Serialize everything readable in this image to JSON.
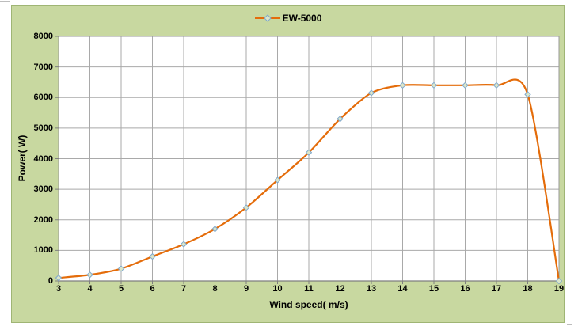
{
  "page": {
    "background": "#ffffff"
  },
  "chart": {
    "background": "#c8d8a0",
    "border_color": "#9fb574",
    "legend": {
      "label": "EW-5000"
    },
    "x_axis": {
      "title": "Wind speed( m/s)"
    },
    "y_axis": {
      "title": "Power( W)"
    }
  },
  "chart_data": {
    "type": "line",
    "title": "",
    "legend_position": "top-center",
    "legend_entries": [
      "EW-5000"
    ],
    "grid": true,
    "smooth": true,
    "xlabel": "Wind speed( m/s)",
    "ylabel": "Power( W)",
    "xlim": [
      3,
      19
    ],
    "ylim": [
      0,
      8000
    ],
    "x_ticks": [
      3,
      4,
      5,
      6,
      7,
      8,
      9,
      10,
      11,
      12,
      13,
      14,
      15,
      16,
      17,
      18,
      19
    ],
    "y_ticks": [
      0,
      1000,
      2000,
      3000,
      4000,
      5000,
      6000,
      7000,
      8000
    ],
    "series": [
      {
        "name": "EW-5000",
        "x": [
          3,
          4,
          5,
          6,
          7,
          8,
          9,
          10,
          11,
          12,
          13,
          14,
          15,
          16,
          17,
          18,
          19
        ],
        "y": [
          100,
          200,
          400,
          800,
          1200,
          1700,
          2400,
          3300,
          4200,
          5300,
          6150,
          6400,
          6400,
          6400,
          6400,
          6100,
          0
        ],
        "line_color": "#e46c0a",
        "marker_shape": "diamond",
        "marker_fill": "#dce6c9",
        "marker_stroke": "#7fa8cc"
      }
    ],
    "colors": {
      "plot_background": "#ffffff",
      "gridline": "#a9a9a9",
      "axis": "#7f7f7f"
    }
  }
}
